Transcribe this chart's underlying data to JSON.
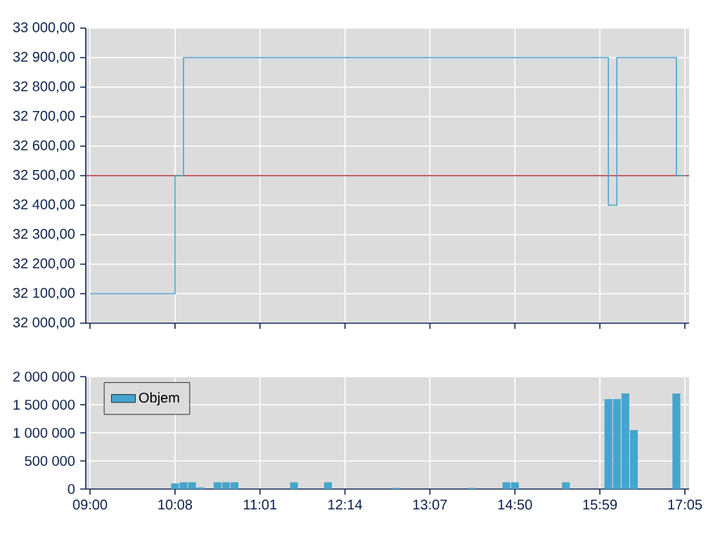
{
  "chart_data": [
    {
      "type": "step",
      "categories": [
        null,
        null,
        null,
        null,
        null,
        null,
        null,
        null,
        null,
        null,
        null,
        null,
        null,
        null,
        null,
        null,
        null,
        null,
        null,
        null,
        null,
        null,
        null,
        null,
        null,
        null,
        null,
        null,
        null,
        null,
        null,
        null,
        null,
        null,
        null,
        null,
        null,
        null,
        null,
        null,
        null,
        null,
        null,
        null,
        null,
        null,
        null,
        null,
        null,
        null,
        null,
        null,
        null,
        null,
        null,
        null,
        null,
        null,
        null,
        null,
        null,
        null,
        null,
        null,
        null,
        null,
        null,
        null,
        null,
        null,
        null
      ],
      "values": [
        32100,
        32100,
        32100,
        32100,
        32100,
        32100,
        32100,
        32100,
        32100,
        32100,
        32500,
        32900,
        32900,
        32900,
        32900,
        32900,
        32900,
        32900,
        32900,
        32900,
        32900,
        32900,
        32900,
        32900,
        32900,
        32900,
        32900,
        32900,
        32900,
        32900,
        32900,
        32900,
        32900,
        32900,
        32900,
        32900,
        32900,
        32900,
        32900,
        32900,
        32900,
        32900,
        32900,
        32900,
        32900,
        32900,
        32900,
        32900,
        32900,
        32900,
        32900,
        32900,
        32900,
        32900,
        32900,
        32900,
        32900,
        32900,
        32900,
        32900,
        32900,
        32400,
        32900,
        32900,
        32900,
        32900,
        32900,
        32900,
        32900,
        32500,
        32500
      ],
      "color": "#4aa3cf",
      "ylim": [
        32000,
        33000
      ],
      "yticks": [
        {
          "value": 32000,
          "label": "32 000,00"
        },
        {
          "value": 32100,
          "label": "32 100,00"
        },
        {
          "value": 32200,
          "label": "32 200,00"
        },
        {
          "value": 32300,
          "label": "32 300,00"
        },
        {
          "value": 32400,
          "label": "32 400,00"
        },
        {
          "value": 32500,
          "label": "32 500,00"
        },
        {
          "value": 32600,
          "label": "32 600,00"
        },
        {
          "value": 32700,
          "label": "32 700,00"
        },
        {
          "value": 32800,
          "label": "32 800,00"
        },
        {
          "value": 32900,
          "label": "32 900,00"
        },
        {
          "value": 33000,
          "label": "33 000,00"
        }
      ],
      "ref_lines": [
        {
          "axis": "y",
          "value": 32500,
          "color": "#b03030"
        }
      ],
      "grid": true
    },
    {
      "type": "bar",
      "categories": [
        "09:00",
        null,
        null,
        null,
        null,
        null,
        null,
        null,
        null,
        null,
        "10:08",
        null,
        null,
        null,
        null,
        null,
        null,
        null,
        null,
        null,
        "11:01",
        null,
        null,
        null,
        null,
        null,
        null,
        null,
        null,
        null,
        "12:14",
        null,
        null,
        null,
        null,
        null,
        null,
        null,
        null,
        null,
        "13:07",
        null,
        null,
        null,
        null,
        null,
        null,
        null,
        null,
        null,
        "14:50",
        null,
        null,
        null,
        null,
        null,
        null,
        null,
        null,
        null,
        "15:59",
        null,
        null,
        null,
        null,
        null,
        null,
        null,
        null,
        null,
        "17:05"
      ],
      "series": [
        {
          "name": "Objem",
          "color": "#45a5cc",
          "values": [
            null,
            null,
            null,
            null,
            null,
            null,
            null,
            null,
            null,
            null,
            100000,
            120000,
            120000,
            30000,
            null,
            120000,
            120000,
            120000,
            null,
            null,
            null,
            null,
            null,
            null,
            120000,
            null,
            null,
            null,
            120000,
            null,
            null,
            null,
            null,
            null,
            null,
            null,
            20000,
            null,
            null,
            null,
            null,
            null,
            null,
            null,
            null,
            20000,
            null,
            null,
            null,
            120000,
            120000,
            null,
            null,
            null,
            null,
            null,
            120000,
            null,
            null,
            null,
            null,
            1600000,
            1600000,
            1700000,
            1050000,
            null,
            null,
            null,
            null,
            1700000,
            null
          ]
        }
      ],
      "ylim": [
        0,
        2000000
      ],
      "yticks": [
        0,
        {
          "value": 500000,
          "label": "500 000"
        },
        {
          "value": 1000000,
          "label": "1 000 000"
        },
        {
          "value": 1500000,
          "label": "1 500 000"
        },
        {
          "value": 2000000,
          "label": "2 000 000"
        }
      ],
      "grid": true,
      "legend": "top left"
    }
  ]
}
